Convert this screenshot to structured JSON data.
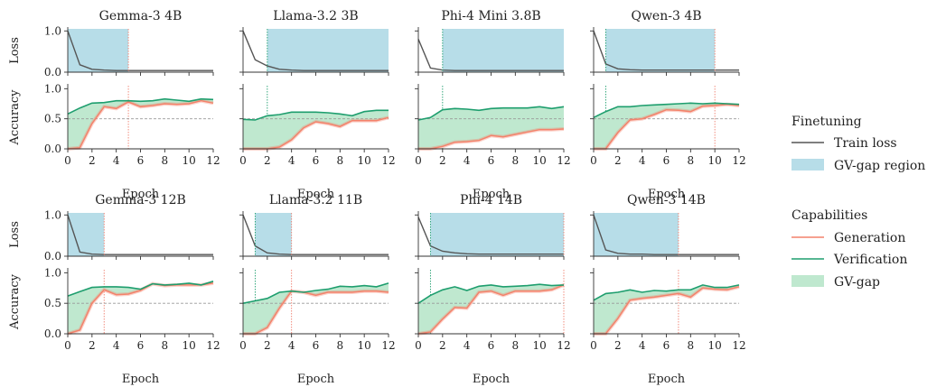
{
  "chart_data": {
    "type": "line",
    "xlabel": "Epoch",
    "loss_ylabel": "Loss",
    "acc_ylabel": "Accuracy",
    "x_ticks": [
      0,
      2,
      4,
      6,
      8,
      10,
      12
    ],
    "loss_ticks": [
      "0.0",
      "1.0"
    ],
    "acc_ticks": [
      "0.0",
      "0.5",
      "1.0"
    ],
    "xlim": [
      0,
      12
    ],
    "loss_ylim": [
      0,
      1.05
    ],
    "acc_ylim": [
      0,
      1.05
    ],
    "reference_line": 0.5,
    "colors": {
      "train_loss": "#555555",
      "generation": "#f4826b",
      "verification": "#1e9e6e",
      "gv_gap_fill": "#bfe8cf",
      "gv_gap_region": "#b7dde8",
      "gen_line_marker": "#f08070",
      "ver_line_marker": "#1e9e6e"
    },
    "legend": {
      "finetuning_title": "Finetuning",
      "train_loss_label": "Train loss",
      "region_label": "GV-gap region",
      "capabilities_title": "Capabilities",
      "generation_label": "Generation",
      "verification_label": "Verification",
      "gap_label": "GV-gap"
    },
    "panels": [
      {
        "title": "Gemma-3 4B",
        "x": [
          0,
          1,
          2,
          3,
          4,
          5,
          6,
          7,
          8,
          9,
          10,
          11,
          12
        ],
        "train_loss": [
          1.0,
          0.18,
          0.07,
          0.05,
          0.04,
          0.04,
          0.04,
          0.04,
          0.04,
          0.04,
          0.04,
          0.04,
          0.04
        ],
        "generation": [
          0.0,
          0.02,
          0.42,
          0.7,
          0.67,
          0.78,
          0.7,
          0.72,
          0.75,
          0.74,
          0.75,
          0.8,
          0.76
        ],
        "verification": [
          0.58,
          0.68,
          0.76,
          0.77,
          0.8,
          0.8,
          0.79,
          0.8,
          0.83,
          0.81,
          0.79,
          0.83,
          0.82
        ],
        "region": [
          0,
          5
        ],
        "ver_marker": null,
        "gen_marker": 5
      },
      {
        "title": "Llama-3.2 3B",
        "x": [
          0,
          1,
          2,
          3,
          4,
          5,
          6,
          7,
          8,
          9,
          10,
          11,
          12
        ],
        "train_loss": [
          1.0,
          0.3,
          0.15,
          0.07,
          0.05,
          0.04,
          0.04,
          0.04,
          0.04,
          0.04,
          0.04,
          0.04,
          0.04
        ],
        "generation": [
          0.0,
          0.0,
          0.0,
          0.03,
          0.15,
          0.35,
          0.45,
          0.42,
          0.37,
          0.47,
          0.47,
          0.47,
          0.52
        ],
        "verification": [
          0.49,
          0.48,
          0.55,
          0.57,
          0.61,
          0.61,
          0.61,
          0.6,
          0.58,
          0.55,
          0.62,
          0.64,
          0.64
        ],
        "region": [
          2,
          12
        ],
        "ver_marker": 2,
        "gen_marker": null
      },
      {
        "title": "Phi-4 Mini 3.8B",
        "x": [
          0,
          1,
          2,
          3,
          4,
          5,
          6,
          7,
          8,
          9,
          10,
          11,
          12
        ],
        "train_loss": [
          0.8,
          0.1,
          0.05,
          0.04,
          0.04,
          0.04,
          0.04,
          0.04,
          0.04,
          0.04,
          0.04,
          0.04,
          0.04
        ],
        "generation": [
          0.0,
          0.0,
          0.04,
          0.11,
          0.12,
          0.14,
          0.22,
          0.2,
          0.24,
          0.28,
          0.32,
          0.32,
          0.33
        ],
        "verification": [
          0.48,
          0.52,
          0.65,
          0.67,
          0.66,
          0.64,
          0.67,
          0.68,
          0.68,
          0.68,
          0.7,
          0.67,
          0.7
        ],
        "region": [
          2,
          12
        ],
        "ver_marker": 2,
        "gen_marker": null
      },
      {
        "title": "Qwen-3 4B",
        "x": [
          0,
          1,
          2,
          3,
          4,
          5,
          6,
          7,
          8,
          9,
          10,
          11,
          12
        ],
        "train_loss": [
          1.0,
          0.2,
          0.08,
          0.06,
          0.05,
          0.05,
          0.05,
          0.05,
          0.05,
          0.05,
          0.05,
          0.05,
          0.05
        ],
        "generation": [
          0.0,
          0.0,
          0.27,
          0.48,
          0.5,
          0.57,
          0.65,
          0.64,
          0.62,
          0.71,
          0.72,
          0.74,
          0.72
        ],
        "verification": [
          0.52,
          0.62,
          0.7,
          0.7,
          0.72,
          0.73,
          0.74,
          0.75,
          0.76,
          0.75,
          0.76,
          0.75,
          0.74
        ],
        "region": [
          1,
          10
        ],
        "ver_marker": 1,
        "gen_marker": 10
      },
      {
        "title": "Gemma-3 12B",
        "x": [
          0,
          1,
          2,
          3,
          4,
          5,
          6,
          7,
          8,
          9,
          10,
          11,
          12
        ],
        "train_loss": [
          1.0,
          0.1,
          0.05,
          0.04,
          0.04,
          0.04,
          0.04,
          0.04,
          0.04,
          0.04,
          0.04,
          0.04,
          0.04
        ],
        "generation": [
          0.0,
          0.06,
          0.5,
          0.72,
          0.64,
          0.65,
          0.71,
          0.82,
          0.79,
          0.8,
          0.8,
          0.8,
          0.83
        ],
        "verification": [
          0.62,
          0.69,
          0.76,
          0.77,
          0.77,
          0.76,
          0.73,
          0.82,
          0.8,
          0.81,
          0.83,
          0.8,
          0.86
        ],
        "region": [
          0,
          3
        ],
        "ver_marker": null,
        "gen_marker": 3
      },
      {
        "title": "Llama-3.2 11B",
        "x": [
          0,
          1,
          2,
          3,
          4,
          5,
          6,
          7,
          8,
          9,
          10,
          11,
          12
        ],
        "train_loss": [
          1.0,
          0.25,
          0.08,
          0.05,
          0.04,
          0.04,
          0.04,
          0.04,
          0.04,
          0.04,
          0.04,
          0.04,
          0.04
        ],
        "generation": [
          0.0,
          0.0,
          0.1,
          0.42,
          0.7,
          0.68,
          0.63,
          0.68,
          0.68,
          0.68,
          0.7,
          0.7,
          0.68
        ],
        "verification": [
          0.5,
          0.54,
          0.58,
          0.68,
          0.7,
          0.68,
          0.71,
          0.73,
          0.78,
          0.77,
          0.79,
          0.77,
          0.83
        ],
        "region": [
          1,
          4
        ],
        "ver_marker": 1,
        "gen_marker": 4
      },
      {
        "title": "Phi-4 14B",
        "x": [
          0,
          1,
          2,
          3,
          4,
          5,
          6,
          7,
          8,
          9,
          10,
          11,
          12
        ],
        "train_loss": [
          0.95,
          0.25,
          0.12,
          0.08,
          0.06,
          0.05,
          0.05,
          0.05,
          0.05,
          0.05,
          0.05,
          0.05,
          0.05
        ],
        "generation": [
          0.0,
          0.03,
          0.24,
          0.43,
          0.42,
          0.68,
          0.7,
          0.63,
          0.7,
          0.7,
          0.7,
          0.72,
          0.8
        ],
        "verification": [
          0.5,
          0.63,
          0.72,
          0.77,
          0.71,
          0.78,
          0.8,
          0.77,
          0.78,
          0.79,
          0.81,
          0.79,
          0.8
        ],
        "region": [
          1,
          12
        ],
        "ver_marker": 1,
        "gen_marker": 12
      },
      {
        "title": "Qwen-3 14B",
        "x": [
          0,
          1,
          2,
          3,
          4,
          5,
          6,
          7,
          8,
          9,
          10,
          11,
          12
        ],
        "train_loss": [
          1.0,
          0.15,
          0.07,
          0.05,
          0.05,
          0.04,
          0.04,
          0.04,
          0.04,
          0.04,
          0.04,
          0.04,
          0.04
        ],
        "generation": [
          0.0,
          0.0,
          0.25,
          0.55,
          0.58,
          0.6,
          0.63,
          0.66,
          0.6,
          0.75,
          0.73,
          0.72,
          0.77
        ],
        "verification": [
          0.55,
          0.66,
          0.68,
          0.72,
          0.68,
          0.71,
          0.7,
          0.72,
          0.72,
          0.8,
          0.76,
          0.76,
          0.8
        ],
        "region": [
          0,
          7
        ],
        "ver_marker": null,
        "gen_marker": 7
      }
    ]
  }
}
